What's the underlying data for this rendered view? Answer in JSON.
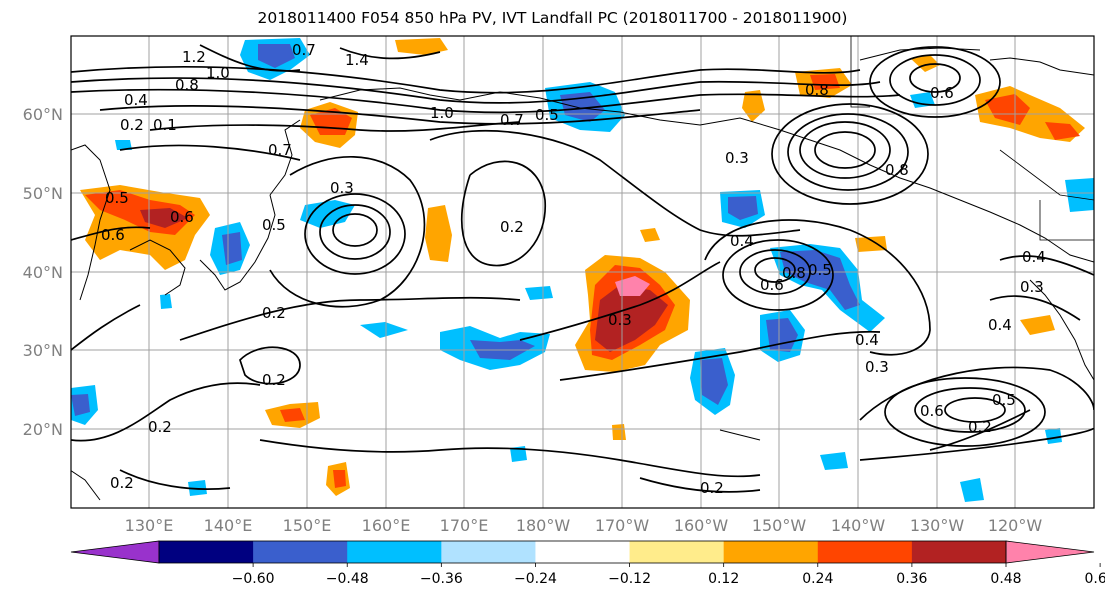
{
  "title": "2018011400 F054 850 hPa PV, IVT Landfall PC (2018011700 - 2018011900)",
  "lon_ticks": [
    "130°E",
    "140°E",
    "150°E",
    "160°E",
    "170°E",
    "180°W",
    "170°W",
    "160°W",
    "150°W",
    "140°W",
    "130°W",
    "120°W"
  ],
  "lat_ticks": [
    "60°N",
    "50°N",
    "40°N",
    "30°N",
    "20°N"
  ],
  "contour_labels": [
    "1.2",
    "0.7",
    "1.4",
    "1.0",
    "0.8",
    "0.4",
    "0.1",
    "1.0",
    "0.7",
    "0.7",
    "0.5",
    "0.8",
    "0.6",
    "0.8",
    "0.3",
    "0.3",
    "0.5",
    "0.5",
    "0.6",
    "0.6",
    "0.2",
    "0.2",
    "0.4",
    "0.6",
    "0.8",
    "0.5",
    "0.3",
    "0.2",
    "0.2",
    "0.2",
    "0.2",
    "0.4",
    "0.3",
    "0.6",
    "0.5",
    "0.2",
    "0.4",
    "0.3",
    "0.4",
    "0.2"
  ],
  "colorbar": {
    "colors": [
      "#9932CC",
      "#000080",
      "#3A5FCD",
      "#00BFFF",
      "#B0E2FF",
      "#FFFFFF",
      "#FFEC8B",
      "#FFA500",
      "#FF4500",
      "#B22222",
      "#FF82AB"
    ],
    "labels": [
      "−0.60",
      "−0.48",
      "−0.36",
      "−0.24",
      "−0.12",
      "0.12",
      "0.24",
      "0.36",
      "0.48",
      "0.60"
    ]
  },
  "map_colors": {
    "ocean": "#FFFFFF",
    "contour": "#000000",
    "grid": "#A0A0A0"
  }
}
